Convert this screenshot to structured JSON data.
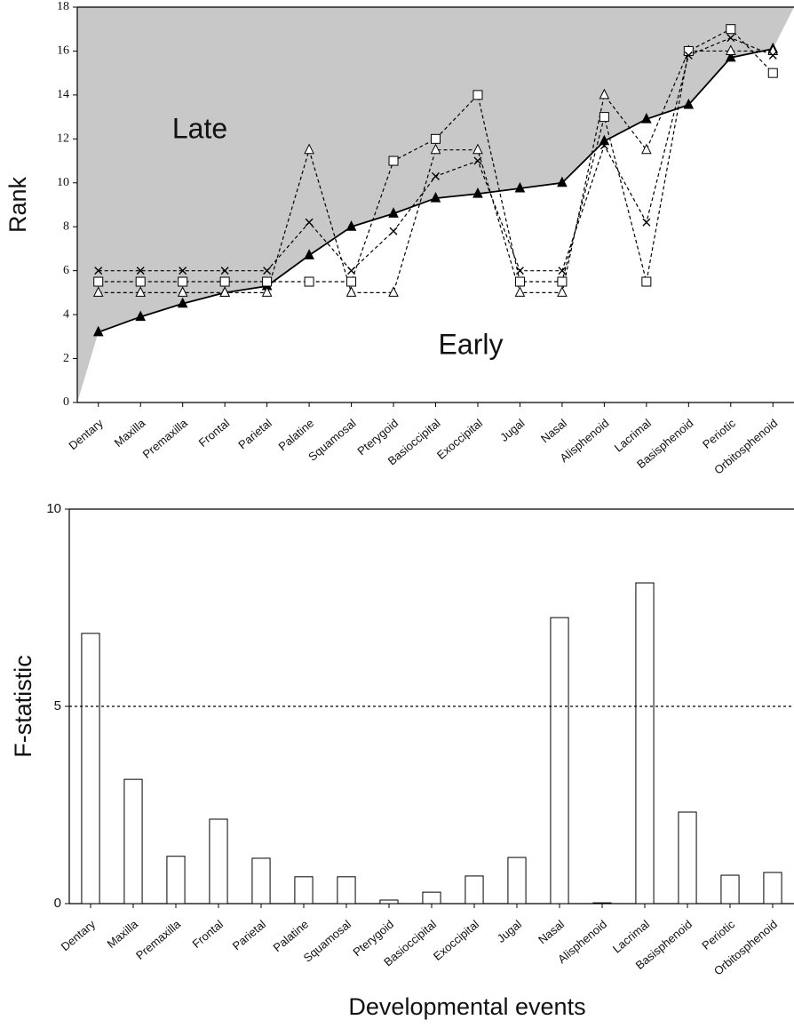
{
  "chart_data": [
    {
      "type": "line",
      "ylabel": "Rank",
      "categories": [
        "Dentary",
        "Maxilla",
        "Premaxilla",
        "Frontal",
        "Parietal",
        "Palatine",
        "Squamosal",
        "Pterygoid",
        "Basioccipital",
        "Exoccipital",
        "Jugal",
        "Nasal",
        "Alisphenoid",
        "Lacrimal",
        "Basisphenoid",
        "Periotic",
        "Orbitosphenoid"
      ],
      "series": [
        {
          "color": "#000000",
          "marker": "filled-triangle",
          "dashed": false,
          "values": [
            3.2,
            3.9,
            4.5,
            5.0,
            5.3,
            6.7,
            8.0,
            8.6,
            9.3,
            9.5,
            9.75,
            10.0,
            11.9,
            12.9,
            13.55,
            15.7,
            16.1
          ]
        },
        {
          "color": "#000000",
          "marker": "open-triangle",
          "dashed": true,
          "values": [
            5,
            5,
            5,
            5,
            5,
            11.5,
            5,
            5,
            11.5,
            11.5,
            5,
            5,
            14,
            11.5,
            16,
            16,
            16
          ]
        },
        {
          "color": "#000000",
          "marker": "open-square",
          "dashed": true,
          "values": [
            5.5,
            5.5,
            5.5,
            5.5,
            5.5,
            5.5,
            5.5,
            11,
            12,
            14,
            5.5,
            5.5,
            13,
            5.5,
            16,
            17,
            15
          ]
        },
        {
          "color": "#000000",
          "marker": "cross",
          "dashed": true,
          "values": [
            6,
            6,
            6,
            6,
            6,
            8.2,
            6,
            7.8,
            10.3,
            11,
            6,
            6,
            11.7,
            8.2,
            15.8,
            16.6,
            15.8
          ]
        }
      ],
      "fill_above_color": "#c8c8c8",
      "annotations": [
        "Late",
        "Early"
      ],
      "ylim": [
        0,
        18
      ],
      "yticks": [
        0,
        2,
        4,
        6,
        8,
        10,
        12,
        14,
        16,
        18
      ]
    },
    {
      "type": "bar",
      "ylabel": "F-statistic",
      "xlabel": "Developmental events",
      "categories": [
        "Dentary",
        "Maxilla",
        "Premaxilla",
        "Frontal",
        "Parietal",
        "Palatine",
        "Squamosal",
        "Pterygoid",
        "Basioccipital",
        "Exoccipital",
        "Jugal",
        "Nasal",
        "Alisphenoid",
        "Lacrimal",
        "Basisphenoid",
        "Periotic",
        "Orbitosphenoid"
      ],
      "values": [
        6.85,
        3.15,
        1.2,
        2.14,
        1.15,
        0.68,
        0.68,
        0.09,
        0.29,
        0.7,
        1.17,
        7.25,
        0.02,
        8.13,
        2.32,
        0.72,
        0.79
      ],
      "color": "#ffffff",
      "hline": 5,
      "ylim": [
        0,
        10
      ],
      "yticks": [
        0,
        5,
        10
      ]
    }
  ]
}
